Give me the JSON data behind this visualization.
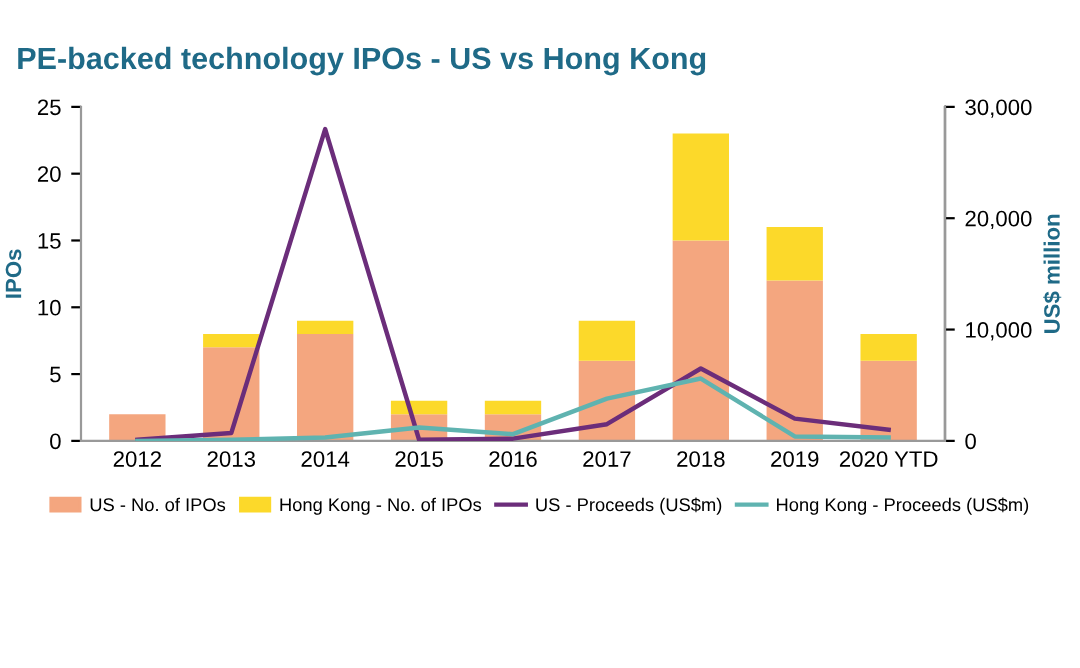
{
  "chart_data": {
    "type": "bar",
    "stacked": true,
    "title": "PE-backed technology IPOs - US vs Hong Kong",
    "ylabel": "IPOs",
    "y2label": "US$ million",
    "categories": [
      "2012",
      "2013",
      "2014",
      "2015",
      "2016",
      "2017",
      "2018",
      "2019",
      "2020 YTD"
    ],
    "series": [
      {
        "name": "US - No. of IPOs",
        "color": "#f4a67f",
        "values": [
          2,
          7,
          8,
          2,
          2,
          6,
          15,
          12,
          6
        ]
      },
      {
        "name": "Hong Kong - No. of IPOs",
        "color": "#fcd92a",
        "values": [
          0,
          1,
          1,
          1,
          1,
          3,
          8,
          4,
          2
        ]
      },
      {
        "name": "US - Proceeds (US$m)",
        "type": "line",
        "axis": "y2",
        "color": "#6b2d7a",
        "values": [
          100,
          700,
          28000,
          100,
          200,
          1500,
          6500,
          2000,
          1000
        ]
      },
      {
        "name": "Hong Kong - Proceeds (US$m)",
        "type": "line",
        "axis": "y2",
        "color": "#5fb3b0",
        "values": [
          0,
          100,
          300,
          1200,
          600,
          3800,
          5600,
          400,
          300
        ]
      }
    ],
    "ylim": [
      0,
      25
    ],
    "yticks": [
      0,
      5,
      10,
      15,
      20,
      25
    ],
    "y2lim": [
      0,
      30000
    ],
    "y2ticks": [
      {
        "value": 0,
        "label": "0"
      },
      {
        "value": 10000,
        "label": "10,000"
      },
      {
        "value": 20000,
        "label": "20,000"
      },
      {
        "value": 30000,
        "label": "30,000"
      }
    ],
    "legend": "bottom",
    "grid": false,
    "marker": "none",
    "line_style": "solid"
  }
}
